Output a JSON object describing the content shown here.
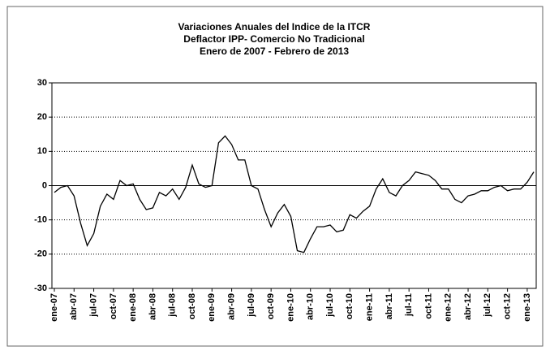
{
  "chart_data": {
    "type": "line",
    "title": [
      "Variaciones Anuales del Indice de la ITCR",
      "Deflactor IPP- Comercio No Tradicional",
      "Enero de 2007 - Febrero de 2013"
    ],
    "categories": [
      "ene-07",
      null,
      null,
      "abr-07",
      null,
      null,
      "jul-07",
      null,
      null,
      "oct-07",
      null,
      null,
      "ene-08",
      null,
      null,
      "abr-08",
      null,
      null,
      "jul-08",
      null,
      null,
      "oct-08",
      null,
      null,
      "ene-09",
      null,
      null,
      "abr-09",
      null,
      null,
      "jul-09",
      null,
      null,
      "oct-09",
      null,
      null,
      "ene-10",
      null,
      null,
      "abr-10",
      null,
      null,
      "jul-10",
      null,
      null,
      "oct-10",
      null,
      null,
      "ene-11",
      null,
      null,
      "abr-11",
      null,
      null,
      "jul-11",
      null,
      null,
      "oct-11",
      null,
      null,
      "ene-12",
      null,
      null,
      "abr-12",
      null,
      null,
      "jul-12",
      null,
      null,
      "oct-12",
      null,
      null,
      "ene-13",
      null
    ],
    "values": [
      -2,
      -0.5,
      0,
      -3,
      -11,
      -17.5,
      -14,
      -6,
      -2.5,
      -4,
      1.5,
      0,
      0.5,
      -4,
      -7,
      -6.5,
      -2,
      -3,
      -1,
      -4,
      -0.5,
      6,
      0.5,
      -0.5,
      0,
      12.5,
      14.5,
      12,
      7.5,
      7.5,
      0,
      -1,
      -7,
      -12,
      -8,
      -5.5,
      -9,
      -19,
      -19.5,
      -15.5,
      -12,
      -12,
      -11.5,
      -13.5,
      -13,
      -8.5,
      -9.5,
      -7.5,
      -6,
      -1,
      2,
      -2,
      -3,
      0,
      1.5,
      4,
      3.5,
      3,
      1.5,
      -1,
      -1,
      -4,
      -5,
      -3,
      -2.5,
      -1.5,
      -1.5,
      -0.5,
      0,
      -1.5,
      -1,
      -1,
      1,
      4
    ],
    "color": "#000000",
    "ylim": [
      -30,
      30
    ],
    "yticks": [
      -30,
      -20,
      -10,
      0,
      10,
      20,
      30
    ],
    "grid": true
  }
}
